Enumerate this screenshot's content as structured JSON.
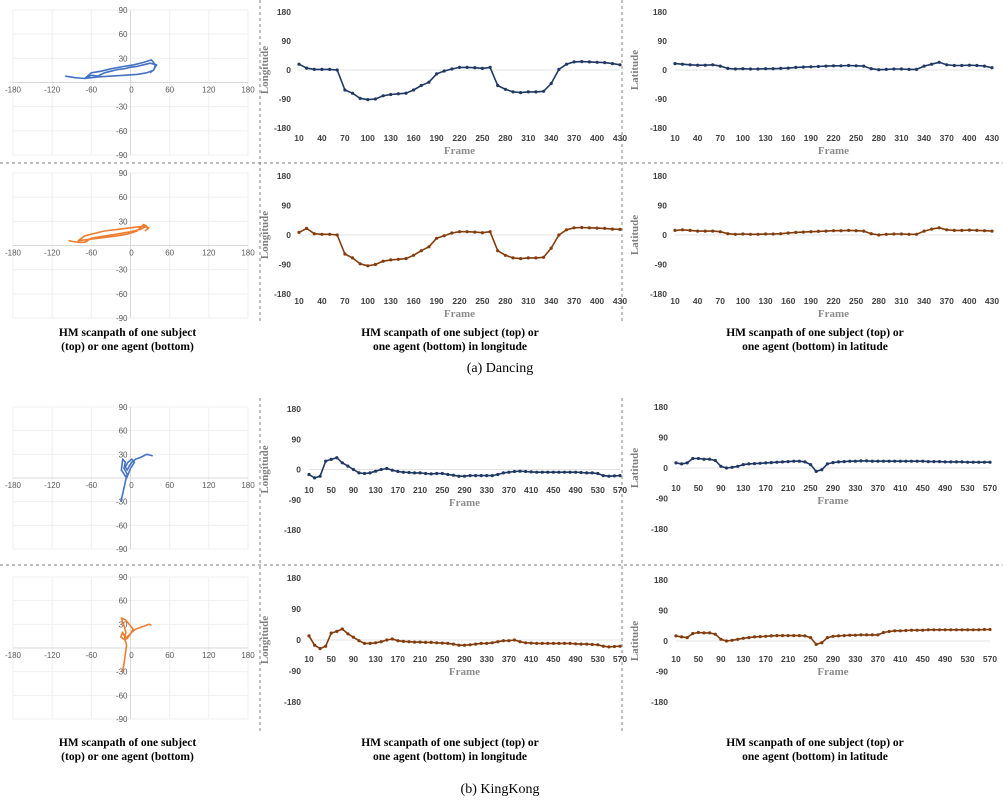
{
  "captions": {
    "col1": [
      "HM scanpath of one subject",
      "(top) or one agent (bottom)"
    ],
    "col2": [
      "HM scanpath of one subject (top)  or",
      "one agent (bottom) in longitude"
    ],
    "col3": [
      "HM scanpath of one subject (top)  or",
      "one agent (bottom) in latitude"
    ]
  },
  "subcaptions": {
    "a": "(a)  Dancing",
    "b": "(b)  KingKong"
  },
  "colors": {
    "subject": "#1f3864",
    "agent": "#843c0c",
    "scan_subject": "#4472c4",
    "scan_agent": "#ed7d31",
    "grid": "#d9d9d9",
    "divider": "#808080"
  },
  "chart_data": [
    {
      "id": "dancing-subject-scanpath",
      "type": "line",
      "group": "Dancing",
      "xlim": [
        -180,
        180
      ],
      "ylim": [
        -90,
        90
      ],
      "xticks": [
        -180,
        -120,
        -60,
        0,
        60,
        120,
        180
      ],
      "yticks": [
        90,
        60,
        30,
        0,
        -30,
        -60,
        -90
      ],
      "x": [
        -100,
        -92,
        -85,
        -70,
        -60,
        -50,
        -40,
        -30,
        -20,
        -10,
        0,
        10,
        20,
        30,
        40,
        35,
        25,
        10,
        -10,
        -30,
        -50,
        -70,
        -60,
        -45,
        -30,
        -10,
        5,
        20,
        32,
        38,
        36,
        30
      ],
      "y": [
        8,
        7,
        6,
        5,
        9,
        8,
        12,
        14,
        16,
        17,
        19,
        20,
        22,
        24,
        22,
        15,
        12,
        10,
        9,
        8,
        7,
        5,
        12,
        14,
        17,
        20,
        22,
        25,
        28,
        22,
        16,
        12
      ]
    },
    {
      "id": "dancing-subject-longitude",
      "type": "line",
      "group": "Dancing",
      "xlabel": "Frame",
      "ylabel": "Longitude",
      "xlim": [
        10,
        430
      ],
      "ylim": [
        -180,
        180
      ],
      "xticks": [
        10,
        40,
        70,
        100,
        130,
        160,
        190,
        220,
        250,
        280,
        310,
        340,
        370,
        400,
        430
      ],
      "yticks": [
        180,
        90,
        0,
        -90,
        -180
      ],
      "x": [
        10,
        20,
        30,
        40,
        50,
        60,
        70,
        80,
        90,
        100,
        110,
        120,
        130,
        140,
        150,
        160,
        170,
        180,
        190,
        200,
        210,
        220,
        230,
        240,
        250,
        260,
        270,
        280,
        290,
        300,
        310,
        320,
        330,
        340,
        350,
        360,
        370,
        380,
        390,
        400,
        410,
        420,
        430
      ],
      "y": [
        18,
        6,
        2,
        2,
        2,
        0,
        -62,
        -72,
        -88,
        -92,
        -90,
        -80,
        -76,
        -74,
        -72,
        -62,
        -48,
        -38,
        -12,
        -3,
        3,
        8,
        8,
        7,
        5,
        8,
        -48,
        -60,
        -68,
        -70,
        -68,
        -68,
        -66,
        -42,
        2,
        18,
        25,
        26,
        25,
        24,
        23,
        20,
        16
      ]
    },
    {
      "id": "dancing-subject-latitude",
      "type": "line",
      "group": "Dancing",
      "xlabel": "Frame",
      "ylabel": "Latitude",
      "xlim": [
        10,
        430
      ],
      "ylim": [
        -180,
        180
      ],
      "xticks": [
        10,
        40,
        70,
        100,
        130,
        160,
        190,
        220,
        250,
        280,
        310,
        340,
        370,
        400,
        430
      ],
      "yticks": [
        180,
        90,
        0,
        -90,
        -180
      ],
      "x": [
        10,
        20,
        30,
        40,
        50,
        60,
        70,
        80,
        90,
        100,
        110,
        120,
        130,
        140,
        150,
        160,
        170,
        180,
        190,
        200,
        210,
        220,
        230,
        240,
        250,
        260,
        270,
        280,
        290,
        300,
        310,
        320,
        330,
        340,
        350,
        360,
        370,
        380,
        390,
        400,
        410,
        420,
        430
      ],
      "y": [
        20,
        18,
        16,
        15,
        15,
        16,
        12,
        5,
        3,
        4,
        3,
        3,
        4,
        4,
        5,
        6,
        8,
        9,
        10,
        11,
        12,
        13,
        13,
        14,
        13,
        12,
        4,
        1,
        2,
        3,
        3,
        2,
        2,
        12,
        18,
        24,
        16,
        14,
        14,
        15,
        14,
        12,
        7
      ]
    },
    {
      "id": "dancing-agent-scanpath",
      "type": "line",
      "group": "Dancing",
      "xlim": [
        -180,
        180
      ],
      "ylim": [
        -90,
        90
      ],
      "xticks": [
        -180,
        -120,
        -60,
        0,
        60,
        120,
        180
      ],
      "yticks": [
        90,
        60,
        30,
        0,
        -30,
        -60,
        -90
      ],
      "x": [
        -95,
        -88,
        -80,
        -70,
        -60,
        -45,
        -30,
        -15,
        0,
        15,
        25,
        20,
        10,
        -5,
        -20,
        -40,
        -60,
        -80,
        -70,
        -55,
        -40,
        -20,
        0,
        20,
        28,
        22
      ],
      "y": [
        6,
        5,
        4,
        4,
        9,
        11,
        13,
        15,
        17,
        20,
        24,
        26,
        18,
        14,
        12,
        10,
        8,
        6,
        12,
        15,
        18,
        20,
        22,
        24,
        22,
        18
      ]
    },
    {
      "id": "dancing-agent-longitude",
      "type": "line",
      "group": "Dancing",
      "xlabel": "Frame",
      "ylabel": "Longitude",
      "xlim": [
        10,
        430
      ],
      "ylim": [
        -180,
        180
      ],
      "xticks": [
        10,
        40,
        70,
        100,
        130,
        160,
        190,
        220,
        250,
        280,
        310,
        340,
        370,
        400,
        430
      ],
      "yticks": [
        180,
        90,
        0,
        -90,
        -180
      ],
      "x": [
        10,
        20,
        30,
        40,
        50,
        60,
        70,
        80,
        90,
        100,
        110,
        120,
        130,
        140,
        150,
        160,
        170,
        180,
        190,
        200,
        210,
        220,
        230,
        240,
        250,
        260,
        270,
        280,
        290,
        300,
        310,
        320,
        330,
        340,
        350,
        360,
        370,
        380,
        390,
        400,
        410,
        420,
        430
      ],
      "y": [
        8,
        20,
        4,
        2,
        2,
        0,
        -58,
        -70,
        -88,
        -94,
        -90,
        -80,
        -76,
        -74,
        -72,
        -62,
        -48,
        -36,
        -10,
        -2,
        6,
        10,
        10,
        9,
        7,
        10,
        -48,
        -62,
        -70,
        -72,
        -70,
        -70,
        -68,
        -40,
        0,
        16,
        22,
        23,
        22,
        21,
        20,
        18,
        17
      ]
    },
    {
      "id": "dancing-agent-latitude",
      "type": "line",
      "group": "Dancing",
      "xlabel": "Frame",
      "ylabel": "Latitude",
      "xlim": [
        10,
        430
      ],
      "ylim": [
        -180,
        180
      ],
      "xticks": [
        10,
        40,
        70,
        100,
        130,
        160,
        190,
        220,
        250,
        280,
        310,
        340,
        370,
        400,
        430
      ],
      "yticks": [
        180,
        90,
        0,
        -90,
        -180
      ],
      "x": [
        10,
        20,
        30,
        40,
        50,
        60,
        70,
        80,
        90,
        100,
        110,
        120,
        130,
        140,
        150,
        160,
        170,
        180,
        190,
        200,
        210,
        220,
        230,
        240,
        250,
        260,
        270,
        280,
        290,
        300,
        310,
        320,
        330,
        340,
        350,
        360,
        370,
        380,
        390,
        400,
        410,
        420,
        430
      ],
      "y": [
        14,
        16,
        14,
        12,
        12,
        12,
        10,
        4,
        2,
        3,
        2,
        2,
        3,
        3,
        4,
        6,
        8,
        9,
        10,
        11,
        12,
        13,
        13,
        14,
        13,
        12,
        4,
        0,
        2,
        3,
        3,
        2,
        2,
        12,
        18,
        22,
        16,
        14,
        14,
        15,
        14,
        13,
        12
      ]
    },
    {
      "id": "kingkong-subject-scanpath",
      "type": "line",
      "group": "KingKong",
      "xlim": [
        -180,
        180
      ],
      "ylim": [
        -90,
        90
      ],
      "xticks": [
        -180,
        -120,
        -60,
        0,
        60,
        120,
        180
      ],
      "yticks": [
        90,
        60,
        30,
        0,
        -30,
        -60,
        -90
      ],
      "x": [
        -15,
        -12,
        -8,
        -5,
        -10,
        -8,
        -12,
        -14,
        -6,
        0,
        6,
        2,
        -4,
        -8,
        -5,
        -2,
        2,
        8,
        15,
        20,
        25,
        30,
        34
      ],
      "y": [
        -30,
        -20,
        -5,
        5,
        12,
        20,
        24,
        10,
        0,
        12,
        20,
        24,
        20,
        14,
        10,
        15,
        20,
        24,
        26,
        28,
        30,
        29,
        28
      ]
    },
    {
      "id": "kingkong-subject-longitude",
      "type": "line",
      "group": "KingKong",
      "xlabel": "Frame",
      "ylabel": "Longitude",
      "xlim": [
        10,
        570
      ],
      "ylim": [
        -180,
        180
      ],
      "xticks": [
        10,
        50,
        90,
        130,
        170,
        210,
        250,
        290,
        330,
        370,
        410,
        450,
        490,
        530,
        570
      ],
      "yticks": [
        180,
        90,
        0,
        -90,
        -180
      ],
      "x": [
        10,
        20,
        30,
        40,
        50,
        60,
        70,
        80,
        90,
        100,
        110,
        120,
        130,
        140,
        150,
        160,
        170,
        180,
        190,
        200,
        210,
        220,
        230,
        240,
        250,
        260,
        270,
        280,
        290,
        300,
        310,
        320,
        330,
        340,
        350,
        360,
        370,
        380,
        390,
        400,
        410,
        420,
        430,
        440,
        450,
        460,
        470,
        480,
        490,
        500,
        510,
        520,
        530,
        540,
        550,
        560,
        570
      ],
      "y": [
        -15,
        -25,
        -20,
        25,
        30,
        35,
        20,
        10,
        0,
        -10,
        -12,
        -10,
        -5,
        0,
        3,
        -2,
        -6,
        -8,
        -9,
        -10,
        -10,
        -12,
        -13,
        -12,
        -12,
        -15,
        -17,
        -20,
        -20,
        -18,
        -18,
        -18,
        -18,
        -18,
        -15,
        -10,
        -8,
        -6,
        -5,
        -6,
        -7,
        -8,
        -8,
        -8,
        -8,
        -8,
        -8,
        -8,
        -8,
        -9,
        -10,
        -10,
        -12,
        -18,
        -20,
        -19,
        -18
      ]
    },
    {
      "id": "kingkong-subject-latitude",
      "type": "line",
      "group": "KingKong",
      "xlabel": "Frame",
      "ylabel": "Latitude",
      "xlim": [
        10,
        570
      ],
      "ylim": [
        -180,
        180
      ],
      "xticks": [
        10,
        50,
        90,
        130,
        170,
        210,
        250,
        290,
        330,
        370,
        410,
        450,
        490,
        530,
        570
      ],
      "yticks": [
        180,
        90,
        0,
        -90,
        -180
      ],
      "x": [
        10,
        20,
        30,
        40,
        50,
        60,
        70,
        80,
        90,
        100,
        110,
        120,
        130,
        140,
        150,
        160,
        170,
        180,
        190,
        200,
        210,
        220,
        230,
        240,
        250,
        260,
        270,
        280,
        290,
        300,
        310,
        320,
        330,
        340,
        350,
        360,
        370,
        380,
        390,
        400,
        410,
        420,
        430,
        440,
        450,
        460,
        470,
        480,
        490,
        500,
        510,
        520,
        530,
        540,
        550,
        560,
        570
      ],
      "y": [
        15,
        12,
        15,
        28,
        28,
        26,
        26,
        22,
        5,
        0,
        2,
        5,
        10,
        12,
        13,
        14,
        15,
        16,
        17,
        18,
        19,
        20,
        20,
        18,
        10,
        -10,
        -5,
        12,
        16,
        18,
        19,
        20,
        20,
        21,
        21,
        20,
        20,
        20,
        20,
        20,
        20,
        20,
        20,
        20,
        20,
        19,
        19,
        19,
        18,
        18,
        18,
        18,
        17,
        17,
        17,
        17,
        17
      ]
    },
    {
      "id": "kingkong-agent-scanpath",
      "type": "line",
      "group": "KingKong",
      "xlim": [
        -180,
        180
      ],
      "ylim": [
        -90,
        90
      ],
      "xticks": [
        -180,
        -120,
        -60,
        0,
        60,
        120,
        180
      ],
      "yticks": [
        90,
        60,
        30,
        0,
        -30,
        -60,
        -90
      ],
      "x": [
        -12,
        -10,
        -8,
        -6,
        -9,
        -7,
        -10,
        -14,
        -8,
        -2,
        4,
        0,
        -5,
        -10,
        -12,
        -15,
        -8,
        -4,
        2,
        8,
        15,
        22,
        28,
        32
      ],
      "y": [
        -30,
        -20,
        -8,
        4,
        12,
        20,
        28,
        38,
        36,
        30,
        24,
        18,
        12,
        16,
        20,
        14,
        10,
        15,
        20,
        24,
        26,
        28,
        30,
        29
      ]
    },
    {
      "id": "kingkong-agent-longitude",
      "type": "line",
      "group": "KingKong",
      "xlabel": "Frame",
      "ylabel": "Longitude",
      "xlim": [
        10,
        570
      ],
      "ylim": [
        -180,
        180
      ],
      "xticks": [
        10,
        50,
        90,
        130,
        170,
        210,
        250,
        290,
        330,
        370,
        410,
        450,
        490,
        530,
        570
      ],
      "yticks": [
        180,
        90,
        0,
        -90,
        -180
      ],
      "x": [
        10,
        20,
        30,
        40,
        50,
        60,
        70,
        80,
        90,
        100,
        110,
        120,
        130,
        140,
        150,
        160,
        170,
        180,
        190,
        200,
        210,
        220,
        230,
        240,
        250,
        260,
        270,
        280,
        290,
        300,
        310,
        320,
        330,
        340,
        350,
        360,
        370,
        380,
        390,
        400,
        410,
        420,
        430,
        440,
        450,
        460,
        470,
        480,
        490,
        500,
        510,
        520,
        530,
        540,
        550,
        560,
        570
      ],
      "y": [
        12,
        -15,
        -25,
        -18,
        20,
        25,
        32,
        18,
        8,
        -2,
        -10,
        -10,
        -8,
        -5,
        0,
        3,
        -2,
        -4,
        -5,
        -6,
        -6,
        -7,
        -7,
        -8,
        -9,
        -10,
        -12,
        -15,
        -15,
        -14,
        -12,
        -10,
        -10,
        -8,
        -5,
        -2,
        -2,
        0,
        -5,
        -8,
        -9,
        -10,
        -10,
        -10,
        -10,
        -10,
        -10,
        -10,
        -11,
        -12,
        -12,
        -13,
        -14,
        -18,
        -20,
        -19,
        -18
      ]
    },
    {
      "id": "kingkong-agent-latitude",
      "type": "line",
      "group": "KingKong",
      "xlabel": "Frame",
      "ylabel": "Latitude",
      "xlim": [
        10,
        570
      ],
      "ylim": [
        -180,
        180
      ],
      "xticks": [
        10,
        50,
        90,
        130,
        170,
        210,
        250,
        290,
        330,
        370,
        410,
        450,
        490,
        530,
        570
      ],
      "yticks": [
        180,
        90,
        0,
        -90,
        -180
      ],
      "x": [
        10,
        20,
        30,
        40,
        50,
        60,
        70,
        80,
        90,
        100,
        110,
        120,
        130,
        140,
        150,
        160,
        170,
        180,
        190,
        200,
        210,
        220,
        230,
        240,
        250,
        260,
        270,
        280,
        290,
        300,
        310,
        320,
        330,
        340,
        350,
        360,
        370,
        380,
        390,
        400,
        410,
        420,
        430,
        440,
        450,
        460,
        470,
        480,
        490,
        500,
        510,
        520,
        530,
        540,
        550,
        560,
        570
      ],
      "y": [
        15,
        12,
        10,
        22,
        25,
        24,
        24,
        20,
        5,
        0,
        2,
        5,
        8,
        10,
        12,
        13,
        14,
        15,
        16,
        16,
        16,
        16,
        16,
        15,
        10,
        -10,
        -5,
        10,
        14,
        15,
        16,
        17,
        17,
        18,
        18,
        18,
        18,
        25,
        28,
        30,
        30,
        31,
        32,
        32,
        32,
        33,
        33,
        33,
        33,
        33,
        33,
        33,
        33,
        33,
        33,
        34,
        34
      ]
    }
  ]
}
